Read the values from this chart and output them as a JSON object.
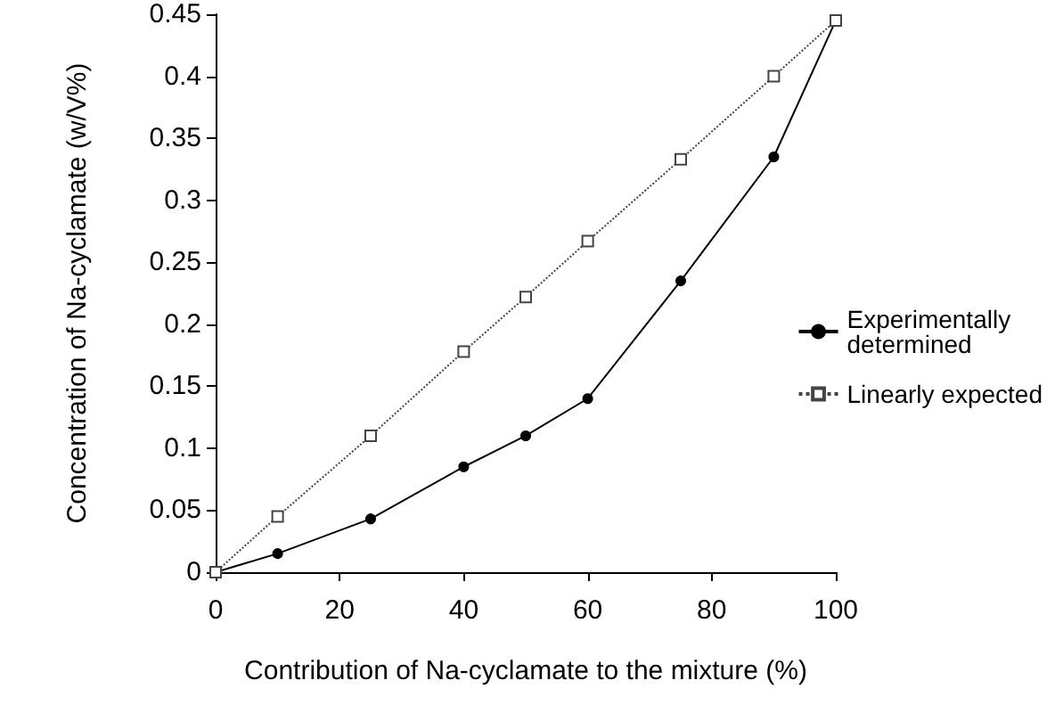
{
  "chart_data": {
    "type": "line",
    "xlabel": "Contribution of Na-cyclamate to the mixture (%)",
    "ylabel": "Concentration of Na-cyclamate (w/V%)",
    "x": [
      0,
      10,
      25,
      40,
      50,
      60,
      75,
      90,
      100
    ],
    "series": [
      {
        "name": "Experimentally determined",
        "color": "#000000",
        "marker": "circle",
        "line_style": "solid",
        "values": [
          0,
          0.015,
          0.043,
          0.085,
          0.11,
          0.14,
          0.235,
          0.335,
          0.445
        ]
      },
      {
        "name": "Linearly expected",
        "color": "#444444",
        "marker": "square",
        "line_style": "dotted",
        "values": [
          0,
          0.045,
          0.11,
          0.178,
          0.222,
          0.267,
          0.333,
          0.4,
          0.445
        ]
      }
    ],
    "xlim": [
      0,
      100
    ],
    "xticks": [
      0,
      20,
      40,
      60,
      80,
      100
    ],
    "ylim": [
      0,
      0.45
    ],
    "yticks": [
      0,
      0.05,
      0.1,
      0.15,
      0.2,
      0.25,
      0.3,
      0.35,
      0.4,
      0.45
    ],
    "grid": false,
    "legend": "right"
  }
}
